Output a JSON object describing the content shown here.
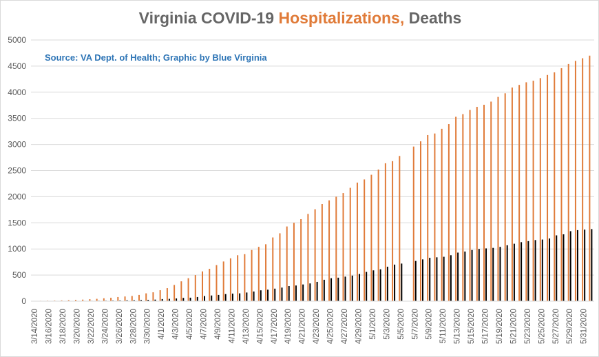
{
  "title": {
    "part1": "Virginia COVID-19 ",
    "part2": "Hospitalizations,",
    "part3": " Deaths"
  },
  "source_note": "Source: VA Dept. of Health; Graphic by Blue Virginia",
  "colors": {
    "hospitalizations": "#e07b39",
    "deaths": "#000000",
    "title_grey": "#666666",
    "title_orange": "#e07b39",
    "source": "#2e75b6",
    "grid": "#d9d9d9",
    "axis_text": "#595959"
  },
  "chart_data": {
    "type": "bar",
    "title": "Virginia COVID-19 Hospitalizations, Deaths",
    "xlabel": "",
    "ylabel": "",
    "ylim": [
      0,
      5000
    ],
    "yticks": [
      0,
      500,
      1000,
      1500,
      2000,
      2500,
      3000,
      3500,
      4000,
      4500,
      5000
    ],
    "grid": true,
    "legend": "none",
    "categories": [
      "3/14/2020",
      "3/15/2020",
      "3/16/2020",
      "3/17/2020",
      "3/18/2020",
      "3/19/2020",
      "3/20/2020",
      "3/21/2020",
      "3/22/2020",
      "3/23/2020",
      "3/24/2020",
      "3/25/2020",
      "3/26/2020",
      "3/27/2020",
      "3/28/2020",
      "3/29/2020",
      "3/30/2020",
      "3/31/2020",
      "4/1/2020",
      "4/2/2020",
      "4/3/2020",
      "4/4/2020",
      "4/5/2020",
      "4/6/2020",
      "4/7/2020",
      "4/8/2020",
      "4/9/2020",
      "4/10/2020",
      "4/11/2020",
      "4/12/2020",
      "4/13/2020",
      "4/14/2020",
      "4/15/2020",
      "4/16/2020",
      "4/17/2020",
      "4/18/2020",
      "4/19/2020",
      "4/20/2020",
      "4/21/2020",
      "4/22/2020",
      "4/23/2020",
      "4/24/2020",
      "4/25/2020",
      "4/26/2020",
      "4/27/2020",
      "4/28/2020",
      "4/29/2020",
      "4/30/2020",
      "5/1/2020",
      "5/2/2020",
      "5/3/2020",
      "5/4/2020",
      "5/5/2020",
      "5/6/2020",
      "5/7/2020",
      "5/8/2020",
      "5/9/2020",
      "5/10/2020",
      "5/11/2020",
      "5/12/2020",
      "5/13/2020",
      "5/14/2020",
      "5/15/2020",
      "5/16/2020",
      "5/17/2020",
      "5/18/2020",
      "5/19/2020",
      "5/20/2020",
      "5/21/2020",
      "5/22/2020",
      "5/23/2020",
      "5/24/2020",
      "5/25/2020",
      "5/26/2020",
      "5/27/2020",
      "5/28/2020",
      "5/29/2020",
      "5/30/2020",
      "5/31/2020",
      "6/1/2020"
    ],
    "tick_labels": [
      "3/14/2020",
      "3/16/2020",
      "3/18/2020",
      "3/20/2020",
      "3/22/2020",
      "3/24/2020",
      "3/26/2020",
      "3/28/2020",
      "3/30/2020",
      "4/1/2020",
      "4/3/2020",
      "4/5/2020",
      "4/7/2020",
      "4/9/2020",
      "4/11/2020",
      "4/13/2020",
      "4/15/2020",
      "4/17/2020",
      "4/19/2020",
      "4/21/2020",
      "4/23/2020",
      "4/25/2020",
      "4/27/2020",
      "4/29/2020",
      "5/1/2020",
      "5/3/2020",
      "5/5/2020",
      "5/7/2020",
      "5/9/2020",
      "5/11/2020",
      "5/13/2020",
      "5/15/2020",
      "5/17/2020",
      "5/19/2020",
      "5/21/2020",
      "5/23/2020",
      "5/25/2020",
      "5/27/2020",
      "5/29/2020",
      "5/31/2020"
    ],
    "series": [
      {
        "name": "Hospitalizations",
        "values": [
          5,
          8,
          10,
          12,
          15,
          20,
          25,
          30,
          38,
          45,
          55,
          65,
          80,
          90,
          100,
          120,
          150,
          170,
          210,
          250,
          310,
          380,
          440,
          500,
          570,
          620,
          690,
          760,
          820,
          880,
          900,
          980,
          1040,
          1090,
          1220,
          1300,
          1430,
          1500,
          1570,
          1670,
          1760,
          1860,
          1930,
          2000,
          2070,
          2170,
          2270,
          2330,
          2420,
          2520,
          2640,
          2680,
          2780,
          0,
          2960,
          3060,
          3180,
          3210,
          3300,
          3390,
          3530,
          3580,
          3660,
          3720,
          3760,
          3820,
          3910,
          3980,
          4090,
          4140,
          4190,
          4220,
          4270,
          4330,
          4380,
          4460,
          4540,
          4600,
          4650,
          4700
        ]
      },
      {
        "name": "Deaths",
        "values": [
          2,
          2,
          2,
          3,
          3,
          5,
          6,
          7,
          8,
          9,
          10,
          12,
          14,
          17,
          19,
          22,
          25,
          30,
          41,
          45,
          52,
          63,
          67,
          80,
          98,
          109,
          120,
          136,
          145,
          150,
          166,
          185,
          208,
          220,
          240,
          260,
          290,
          300,
          320,
          340,
          370,
          410,
          440,
          450,
          470,
          490,
          520,
          560,
          590,
          610,
          660,
          700,
          720,
          0,
          770,
          800,
          830,
          840,
          850,
          880,
          930,
          950,
          980,
          1000,
          1010,
          1020,
          1040,
          1070,
          1100,
          1130,
          1150,
          1170,
          1180,
          1200,
          1260,
          1280,
          1340,
          1360,
          1370,
          1380
        ]
      }
    ]
  }
}
